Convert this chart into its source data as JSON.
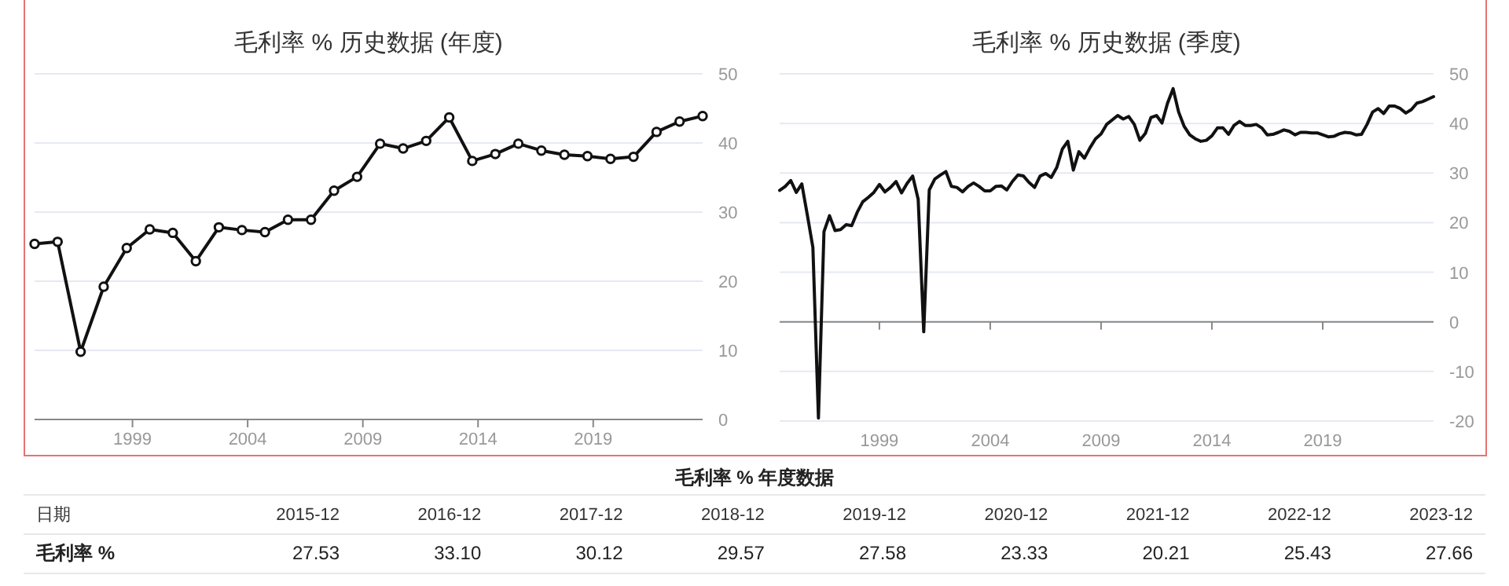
{
  "chart_data": [
    {
      "type": "line",
      "title": "毛利率 % 历史数据 (年度)",
      "x": [
        1994.75,
        1995.75,
        1996.75,
        1997.75,
        1998.75,
        1999.75,
        2000.75,
        2001.75,
        2002.75,
        2003.75,
        2004.75,
        2005.75,
        2006.75,
        2007.75,
        2008.75,
        2009.75,
        2010.75,
        2011.75,
        2012.75,
        2013.75,
        2014.75,
        2015.75,
        2016.75,
        2017.75,
        2018.75,
        2019.75,
        2020.75,
        2021.75,
        2022.75,
        2023.75
      ],
      "series": [
        {
          "color": "#111111",
          "values": [
            25.4,
            25.7,
            9.8,
            19.2,
            24.8,
            27.5,
            27.0,
            22.9,
            27.8,
            27.4,
            27.1,
            28.9,
            28.9,
            33.1,
            35.1,
            39.9,
            39.2,
            40.3,
            43.7,
            37.4,
            38.4,
            39.9,
            38.9,
            38.3,
            38.1,
            37.7,
            38.0,
            41.6,
            43.1,
            43.9
          ]
        }
      ],
      "xlim": [
        1994.75,
        2023.75
      ],
      "xticks": [
        1999,
        2004,
        2009,
        2014,
        2019
      ],
      "ylim": [
        0,
        50
      ],
      "yticks": [
        0,
        10,
        20,
        30,
        40,
        50
      ],
      "grid": "y",
      "marker": "circle",
      "line_style": "solid"
    },
    {
      "type": "line",
      "title": "毛利率 % 历史数据 (季度)",
      "x": [
        1994.5,
        1994.75,
        1995,
        1995.25,
        1995.5,
        1995.75,
        1996,
        1996.25,
        1996.5,
        1996.75,
        1997,
        1997.25,
        1997.5,
        1997.75,
        1998,
        1998.25,
        1998.5,
        1998.75,
        1999,
        1999.25,
        1999.5,
        1999.75,
        2000,
        2000.25,
        2000.5,
        2000.75,
        2001,
        2001.25,
        2001.5,
        2001.75,
        2002,
        2002.25,
        2002.5,
        2002.75,
        2003,
        2003.25,
        2003.5,
        2003.75,
        2004,
        2004.25,
        2004.5,
        2004.75,
        2005,
        2005.25,
        2005.5,
        2005.75,
        2006,
        2006.25,
        2006.5,
        2006.75,
        2007,
        2007.25,
        2007.5,
        2007.75,
        2008,
        2008.25,
        2008.5,
        2008.75,
        2009,
        2009.25,
        2009.5,
        2009.75,
        2010,
        2010.25,
        2010.5,
        2010.75,
        2011,
        2011.25,
        2011.5,
        2011.75,
        2012,
        2012.25,
        2012.5,
        2012.75,
        2013,
        2013.25,
        2013.5,
        2013.75,
        2014,
        2014.25,
        2014.5,
        2014.75,
        2015,
        2015.25,
        2015.5,
        2015.75,
        2016,
        2016.25,
        2016.5,
        2016.75,
        2017,
        2017.25,
        2017.5,
        2017.75,
        2018,
        2018.25,
        2018.5,
        2018.75,
        2019,
        2019.25,
        2019.5,
        2019.75,
        2020,
        2020.25,
        2020.5,
        2020.75,
        2021,
        2021.25,
        2021.5,
        2021.75,
        2022,
        2022.25,
        2022.5,
        2022.75,
        2023,
        2023.25,
        2023.5,
        2023.75,
        2024
      ],
      "series": [
        {
          "color": "#111111",
          "values": [
            26.5,
            27.3,
            28.5,
            26.1,
            27.8,
            21.5,
            15.0,
            -19.4,
            18.2,
            21.4,
            18.4,
            18.6,
            19.6,
            19.4,
            22.1,
            24.2,
            25.1,
            26.1,
            27.7,
            26.2,
            27.1,
            28.3,
            26.0,
            27.9,
            29.4,
            24.7,
            -2.0,
            26.6,
            28.8,
            29.6,
            30.3,
            27.3,
            27.1,
            26.2,
            27.3,
            28.0,
            27.3,
            26.4,
            26.4,
            27.3,
            27.4,
            26.6,
            28.3,
            29.6,
            29.4,
            28.1,
            27.1,
            29.4,
            29.9,
            29.1,
            31.1,
            34.8,
            36.4,
            30.6,
            34.3,
            33.0,
            35.1,
            36.9,
            37.9,
            39.8,
            40.7,
            41.6,
            40.9,
            41.4,
            39.8,
            36.6,
            38.0,
            41.2,
            41.6,
            40.1,
            44.1,
            47.0,
            42.3,
            39.4,
            37.7,
            36.9,
            36.4,
            36.6,
            37.5,
            39.1,
            39.1,
            37.8,
            39.6,
            40.4,
            39.6,
            39.6,
            39.8,
            39.1,
            37.7,
            37.8,
            38.2,
            38.7,
            38.4,
            37.7,
            38.2,
            38.2,
            38.1,
            38.1,
            37.7,
            37.3,
            37.4,
            37.9,
            38.2,
            38.1,
            37.7,
            37.8,
            39.8,
            42.3,
            43.0,
            42.0,
            43.5,
            43.5,
            43.0,
            42.1,
            42.8,
            44.1,
            44.4,
            44.9,
            45.4
          ]
        }
      ],
      "xlim": [
        1994.5,
        2024
      ],
      "xticks": [
        1999,
        2004,
        2009,
        2014,
        2019
      ],
      "ylim": [
        -20,
        50
      ],
      "yticks": [
        -20,
        -10,
        0,
        10,
        20,
        30,
        40,
        50
      ],
      "grid": "y",
      "marker": "none",
      "line_style": "solid"
    },
    {
      "type": "other",
      "title": "毛利率 % 年度数据",
      "xlabel": "日期",
      "categories": [
        "2015-12",
        "2016-12",
        "2017-12",
        "2018-12",
        "2019-12",
        "2020-12",
        "2021-12",
        "2022-12",
        "2023-12"
      ],
      "series": [
        {
          "name": "毛利率 %",
          "values": [
            27.53,
            33.1,
            30.12,
            29.57,
            27.58,
            23.33,
            20.21,
            25.43,
            27.66
          ],
          "value_labels": [
            "27.53",
            "33.10",
            "30.12",
            "29.57",
            "27.58",
            "23.33",
            "20.21",
            "25.43",
            "27.66"
          ]
        }
      ]
    }
  ]
}
